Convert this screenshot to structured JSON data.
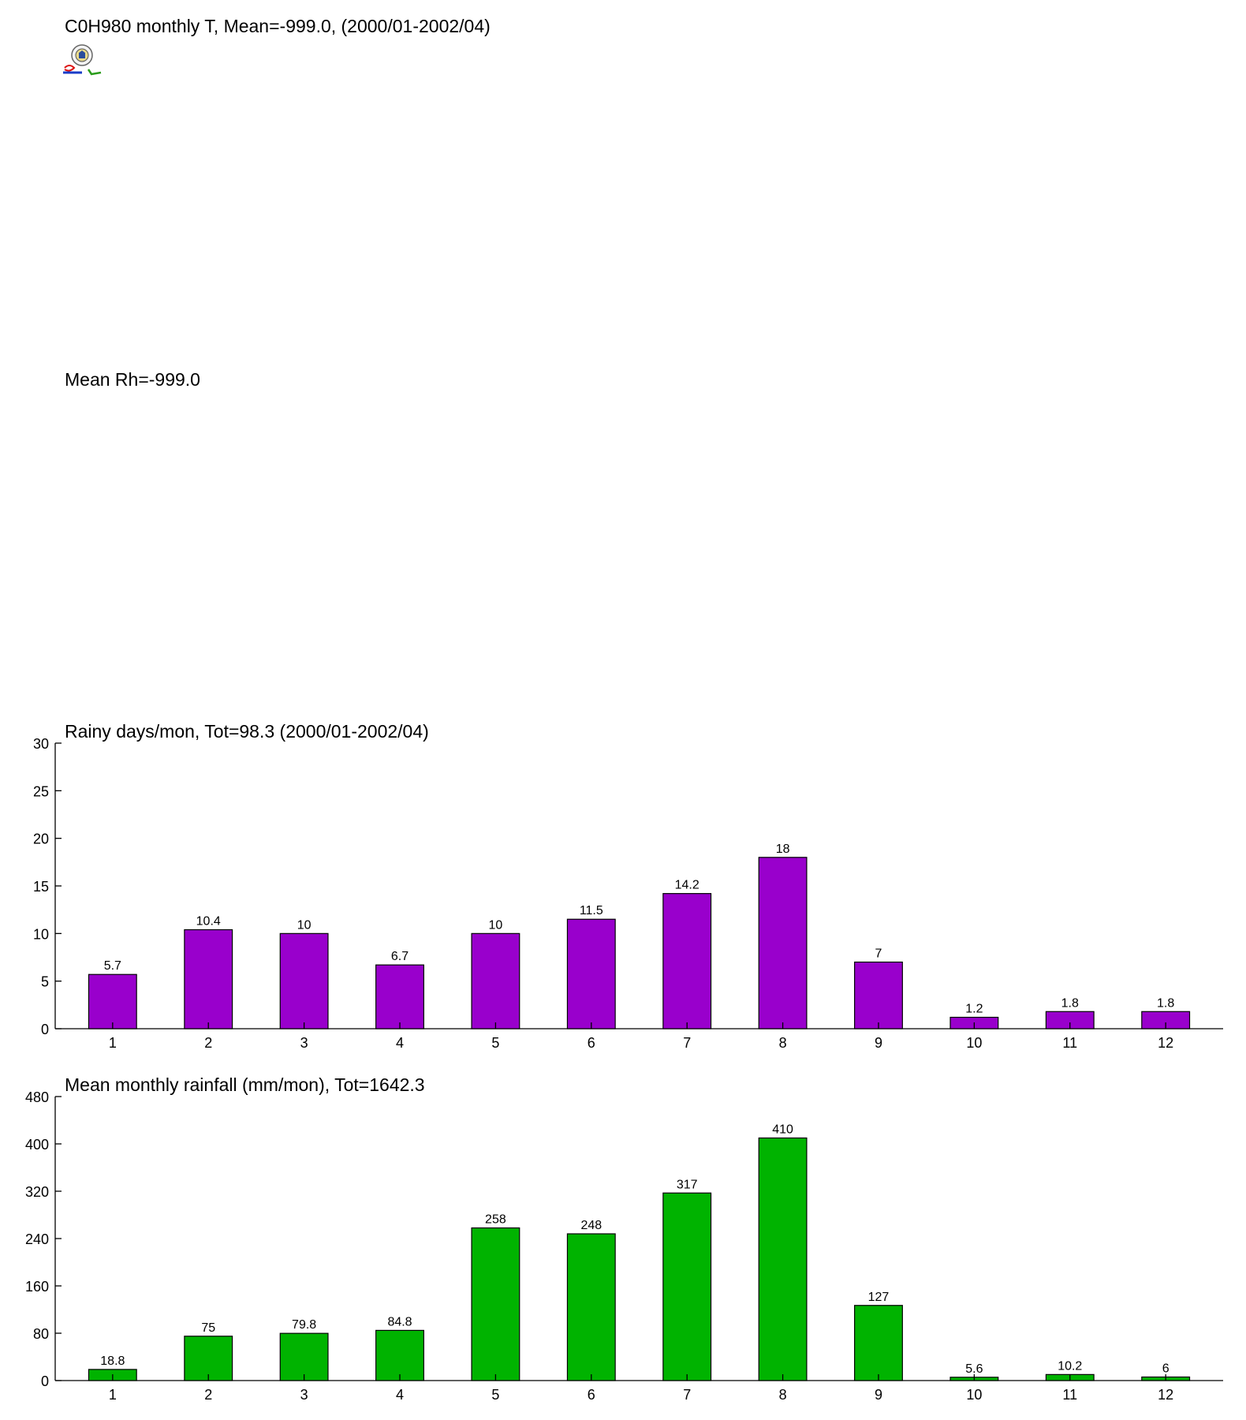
{
  "temperature": {
    "title": "C0H980 monthly T, Mean=-999.0, (2000/01-2002/04)"
  },
  "humidity": {
    "title": "Mean Rh=-999.0"
  },
  "logo": {
    "icon": "weather-station-logo-icon"
  },
  "chart_data": [
    {
      "type": "bar",
      "title": "Rainy days/mon, Tot=98.3 (2000/01-2002/04)",
      "xlabel": "",
      "ylabel": "",
      "categories": [
        "1",
        "2",
        "3",
        "4",
        "5",
        "6",
        "7",
        "8",
        "9",
        "10",
        "11",
        "12"
      ],
      "values": [
        5.7,
        10.4,
        10,
        6.7,
        10,
        11.5,
        14.2,
        18,
        7,
        1.2,
        1.8,
        1.8
      ],
      "labels": [
        "5.7",
        "10.4",
        "10",
        "6.7",
        "10",
        "11.5",
        "14.2",
        "18",
        "7",
        "1.2",
        "1.8",
        "1.8"
      ],
      "ylim": [
        0,
        30
      ],
      "yticks": [
        0,
        5,
        10,
        15,
        20,
        25,
        30
      ],
      "color": "#9900cc",
      "grid": false
    },
    {
      "type": "bar",
      "title": "Mean monthly rainfall (mm/mon), Tot=1642.3",
      "xlabel": "",
      "ylabel": "",
      "categories": [
        "1",
        "2",
        "3",
        "4",
        "5",
        "6",
        "7",
        "8",
        "9",
        "10",
        "11",
        "12"
      ],
      "values": [
        18.8,
        75,
        79.8,
        84.8,
        258,
        248,
        317,
        410,
        127,
        5.6,
        10.2,
        6
      ],
      "labels": [
        "18.8",
        "75",
        "79.8",
        "84.8",
        "258",
        "248",
        "317",
        "410",
        "127",
        "5.6",
        "10.2",
        "6"
      ],
      "ylim": [
        0,
        480
      ],
      "yticks": [
        0,
        80,
        160,
        240,
        320,
        400,
        480
      ],
      "color": "#00b300",
      "grid": false
    }
  ]
}
